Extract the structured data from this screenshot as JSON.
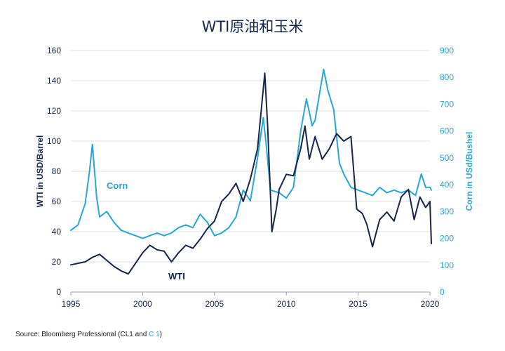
{
  "chart_data": {
    "type": "line",
    "title": "WTI原油和玉米",
    "ylabel_left": "WTI in USD/Barrel",
    "ylabel_right": "Corn in USd/Bushel",
    "xlim": [
      1995,
      2020
    ],
    "ylim_left": [
      0,
      160
    ],
    "ylim_right": [
      0,
      900
    ],
    "x_ticks": [
      "1995",
      "2000",
      "2005",
      "2010",
      "2015",
      "2020"
    ],
    "y_ticks_left": [
      "0",
      "20",
      "40",
      "60",
      "80",
      "100",
      "120",
      "140",
      "160"
    ],
    "y_ticks_right": [
      "0",
      "100",
      "200",
      "300",
      "400",
      "500",
      "600",
      "700",
      "800",
      "900"
    ],
    "grid": "horizontal",
    "series": [
      {
        "name": "WTI",
        "axis": "left",
        "color": "#14264a",
        "x": [
          1995.0,
          1995.5,
          1996.0,
          1996.5,
          1997.0,
          1997.5,
          1998.0,
          1998.5,
          1999.0,
          1999.5,
          2000.0,
          2000.5,
          2001.0,
          2001.5,
          2002.0,
          2002.5,
          2003.0,
          2003.5,
          2004.0,
          2004.5,
          2005.0,
          2005.5,
          2006.0,
          2006.5,
          2007.0,
          2007.5,
          2008.0,
          2008.3,
          2008.5,
          2008.7,
          2009.0,
          2009.3,
          2009.5,
          2010.0,
          2010.5,
          2011.0,
          2011.3,
          2011.6,
          2012.0,
          2012.5,
          2013.0,
          2013.5,
          2014.0,
          2014.5,
          2014.9,
          2015.3,
          2015.6,
          2016.0,
          2016.5,
          2017.0,
          2017.5,
          2018.0,
          2018.5,
          2018.9,
          2019.3,
          2019.7,
          2020.0,
          2020.1
        ],
        "values": [
          18,
          19,
          20,
          23,
          25,
          21,
          17,
          14,
          12,
          19,
          26,
          31,
          28,
          27,
          20,
          26,
          31,
          29,
          35,
          42,
          47,
          60,
          65,
          72,
          60,
          75,
          95,
          125,
          145,
          110,
          40,
          55,
          68,
          78,
          77,
          95,
          110,
          88,
          103,
          88,
          95,
          105,
          100,
          103,
          55,
          52,
          45,
          30,
          48,
          53,
          47,
          63,
          68,
          48,
          63,
          56,
          60,
          32
        ]
      },
      {
        "name": "Corn",
        "axis": "right",
        "color": "#27a6d6",
        "x": [
          1995.0,
          1995.5,
          1996.0,
          1996.3,
          1996.5,
          1996.8,
          1997.0,
          1997.5,
          1998.0,
          1998.5,
          1999.0,
          1999.5,
          2000.0,
          2000.5,
          2001.0,
          2001.5,
          2002.0,
          2002.5,
          2003.0,
          2003.5,
          2004.0,
          2004.5,
          2005.0,
          2005.5,
          2006.0,
          2006.5,
          2007.0,
          2007.5,
          2008.0,
          2008.4,
          2008.6,
          2008.9,
          2009.5,
          2010.0,
          2010.5,
          2011.0,
          2011.4,
          2011.8,
          2012.0,
          2012.6,
          2012.9,
          2013.3,
          2013.7,
          2014.0,
          2014.5,
          2015.0,
          2015.5,
          2016.0,
          2016.5,
          2017.0,
          2017.5,
          2018.0,
          2018.5,
          2019.0,
          2019.4,
          2019.7,
          2020.0,
          2020.1
        ],
        "values": [
          230,
          250,
          330,
          450,
          550,
          350,
          280,
          300,
          260,
          230,
          220,
          210,
          200,
          210,
          220,
          210,
          220,
          240,
          250,
          240,
          290,
          260,
          210,
          220,
          240,
          280,
          380,
          340,
          500,
          650,
          550,
          380,
          370,
          350,
          390,
          600,
          720,
          620,
          640,
          830,
          750,
          680,
          480,
          440,
          390,
          380,
          370,
          360,
          390,
          370,
          380,
          370,
          380,
          360,
          440,
          390,
          390,
          380
        ]
      }
    ],
    "annotations": [
      {
        "text": "Corn",
        "color": "#27a6d6"
      },
      {
        "text": "WTI",
        "color": "#14264a"
      }
    ]
  },
  "footer": {
    "prefix": "Source: Bloomberg Professional  (CL1 and ",
    "accent": "C 1",
    "suffix": ")"
  }
}
